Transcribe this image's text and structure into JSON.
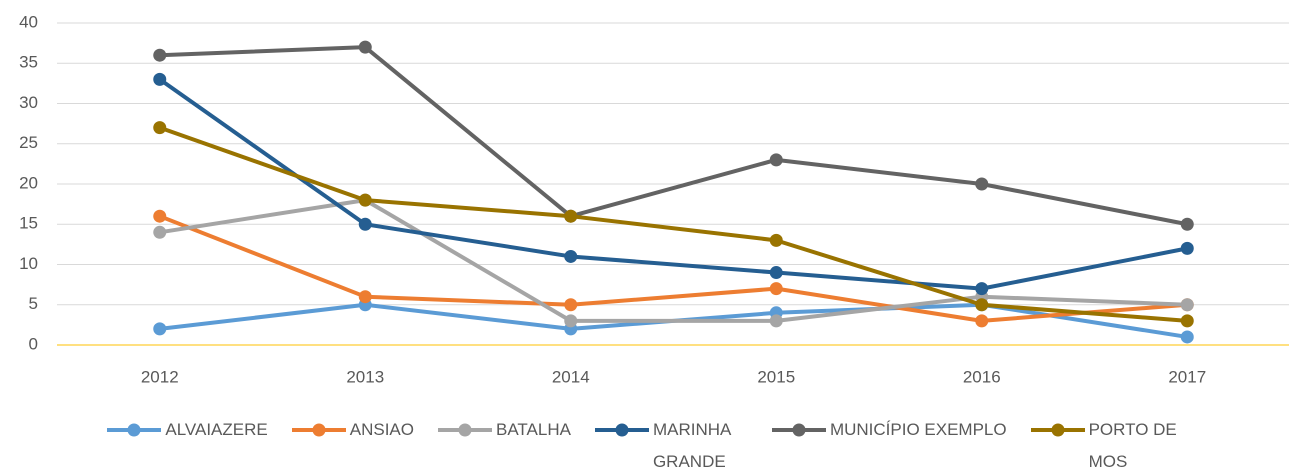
{
  "chart_data": {
    "type": "line",
    "categories": [
      "2012",
      "2013",
      "2014",
      "2015",
      "2016",
      "2017"
    ],
    "series": [
      {
        "name": "ALVAIAZERE",
        "color": "#5b9bd5",
        "values": [
          2,
          5,
          2,
          4,
          5,
          1
        ]
      },
      {
        "name": "ANSIAO",
        "color": "#ed7d31",
        "values": [
          16,
          6,
          5,
          7,
          3,
          5
        ]
      },
      {
        "name": "BATALHA",
        "color": "#a5a5a5",
        "values": [
          14,
          18,
          3,
          3,
          6,
          5
        ]
      },
      {
        "name": "MARINHA GRANDE",
        "color": "#255e91",
        "values": [
          33,
          15,
          11,
          9,
          7,
          12
        ]
      },
      {
        "name": "MUNICÍPIO EXEMPLO",
        "color": "#636363",
        "values": [
          36,
          37,
          16,
          23,
          20,
          15
        ]
      },
      {
        "name": "PORTO DE MOS",
        "color": "#997300",
        "values": [
          27,
          18,
          16,
          13,
          5,
          3
        ]
      }
    ],
    "ylim": [
      0,
      40
    ],
    "yticks": [
      0,
      5,
      10,
      15,
      20,
      25,
      30,
      35,
      40
    ],
    "grid": true,
    "legend": "bottom"
  }
}
